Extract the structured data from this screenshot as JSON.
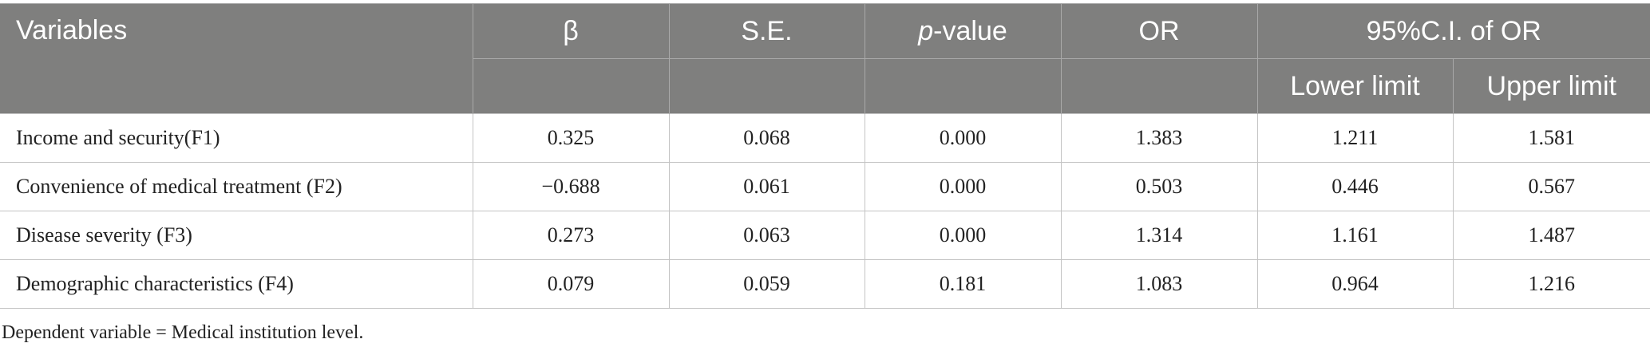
{
  "table": {
    "columns": [
      "Variables",
      "β",
      "S.E.",
      {
        "italic": "p",
        "rest": "-value"
      },
      "OR",
      "95%C.I. of OR"
    ],
    "subcolumns": [
      "Lower limit",
      "Upper limit"
    ],
    "rows": [
      [
        "Income and security(F1)",
        "0.325",
        "0.068",
        "0.000",
        "1.383",
        "1.211",
        "1.581"
      ],
      [
        "Convenience of medical treatment (F2)",
        "−0.688",
        "0.061",
        "0.000",
        "0.503",
        "0.446",
        "0.567"
      ],
      [
        "Disease severity (F3)",
        "0.273",
        "0.063",
        "0.000",
        "1.314",
        "1.161",
        "1.487"
      ],
      [
        "Demographic characteristics (F4)",
        "0.079",
        "0.059",
        "0.181",
        "1.083",
        "0.964",
        "1.216"
      ]
    ]
  },
  "footnote": "Dependent variable = Medical institution level."
}
